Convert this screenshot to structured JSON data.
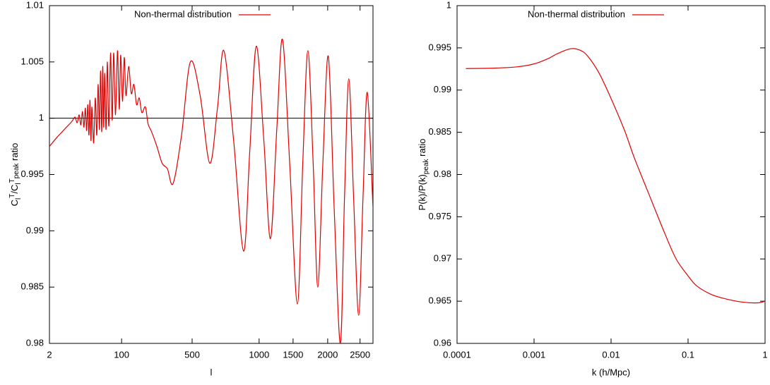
{
  "chart_data": [
    {
      "type": "line",
      "xlabel": "l",
      "ylabel_parts": [
        "C",
        "l",
        "T",
        "/C",
        "l",
        "T",
        "peak",
        " ratio"
      ],
      "xlim": [
        2,
        2696
      ],
      "ylim": [
        0.98,
        1.01
      ],
      "xticks": [
        2,
        100,
        500,
        1000,
        1500,
        2000,
        2500
      ],
      "yticks": [
        0.98,
        0.985,
        0.99,
        0.995,
        1,
        1.005,
        1.01
      ],
      "hline": 1,
      "legend": "top",
      "series": [
        {
          "name": "Non-thermal distribution",
          "color": "#e00000",
          "x": [
            2,
            3,
            4,
            5,
            6,
            7,
            8,
            9,
            10,
            11,
            12,
            13,
            14,
            15,
            16,
            17,
            18,
            19,
            20,
            22,
            24,
            26,
            28,
            30,
            32,
            34,
            36,
            38,
            40,
            43,
            46,
            50,
            55,
            60,
            65,
            72,
            80,
            88,
            95,
            105,
            115,
            125,
            140,
            155,
            170,
            185,
            200,
            215,
            235,
            250,
            270,
            300,
            330,
            360,
            392,
            440,
            490,
            560,
            632,
            690,
            737,
            810,
            884,
            930,
            979,
            1070,
            1167,
            1260,
            1344,
            1450,
            1562,
            1640,
            1714,
            1790,
            1857,
            1930,
            2010,
            2100,
            2196,
            2260,
            2326,
            2400,
            2478,
            2545,
            2609,
            2696
          ],
          "values": [
            0.9975,
            0.9983,
            0.9988,
            0.9992,
            0.9995,
            0.9998,
            1.0001,
            0.9996,
            1.0003,
            0.9994,
            1.0006,
            0.9992,
            1.0009,
            0.9989,
            1.0012,
            0.9985,
            1.0016,
            0.998,
            1.001,
            0.9978,
            1.0018,
            0.9985,
            1.003,
            0.999,
            1.0042,
            0.9988,
            1.0046,
            0.9992,
            1.004,
            0.999,
            1.005,
            0.9993,
            1.0058,
            0.9998,
            1.0058,
            1.0003,
            1.006,
            1.0008,
            1.0056,
            1.0015,
            1.0054,
            1.002,
            1.0046,
            1.0022,
            1.003,
            1.0012,
            1.0018,
            1.0005,
            1.001,
            0.9995,
            0.9988,
            0.9975,
            0.996,
            0.9955,
            0.9942,
            0.9985,
            1.005,
            1.002,
            0.996,
            1.001,
            1.006,
            0.998,
            0.9882,
            0.997,
            1.0064,
            0.998,
            0.9893,
            0.999,
            1.007,
            0.996,
            0.9835,
            0.996,
            1.006,
            0.996,
            0.985,
            0.996,
            1.0055,
            0.992,
            0.98,
            0.993,
            1.0035,
            0.993,
            0.9825,
            0.993,
            1.0023,
            0.992
          ]
        }
      ]
    },
    {
      "type": "line",
      "xlabel": "k  (h/Mpc)",
      "ylabel_parts": [
        "P(k)/P(k)",
        "peak",
        " ratio"
      ],
      "xscale": "log",
      "xlim": [
        0.0001,
        1
      ],
      "ylim": [
        0.96,
        1
      ],
      "xticks": [
        0.0001,
        0.001,
        0.01,
        0.1,
        1
      ],
      "yticks": [
        0.96,
        0.965,
        0.97,
        0.975,
        0.98,
        0.985,
        0.99,
        0.995,
        1
      ],
      "legend": "top",
      "series": [
        {
          "name": "Non-thermal distribution",
          "color": "#e00000",
          "x": [
            0.00013,
            0.0003,
            0.0006,
            0.001,
            0.0015,
            0.002,
            0.003,
            0.004,
            0.005,
            0.007,
            0.01,
            0.015,
            0.02,
            0.03,
            0.05,
            0.07,
            0.1,
            0.13,
            0.2,
            0.3,
            0.5,
            0.8,
            1
          ],
          "values": [
            0.99255,
            0.9926,
            0.99275,
            0.9931,
            0.9937,
            0.9943,
            0.9949,
            0.9947,
            0.994,
            0.992,
            0.989,
            0.9852,
            0.982,
            0.978,
            0.973,
            0.97,
            0.968,
            0.9668,
            0.9658,
            0.9653,
            0.9649,
            0.9648,
            0.965
          ]
        }
      ]
    }
  ]
}
